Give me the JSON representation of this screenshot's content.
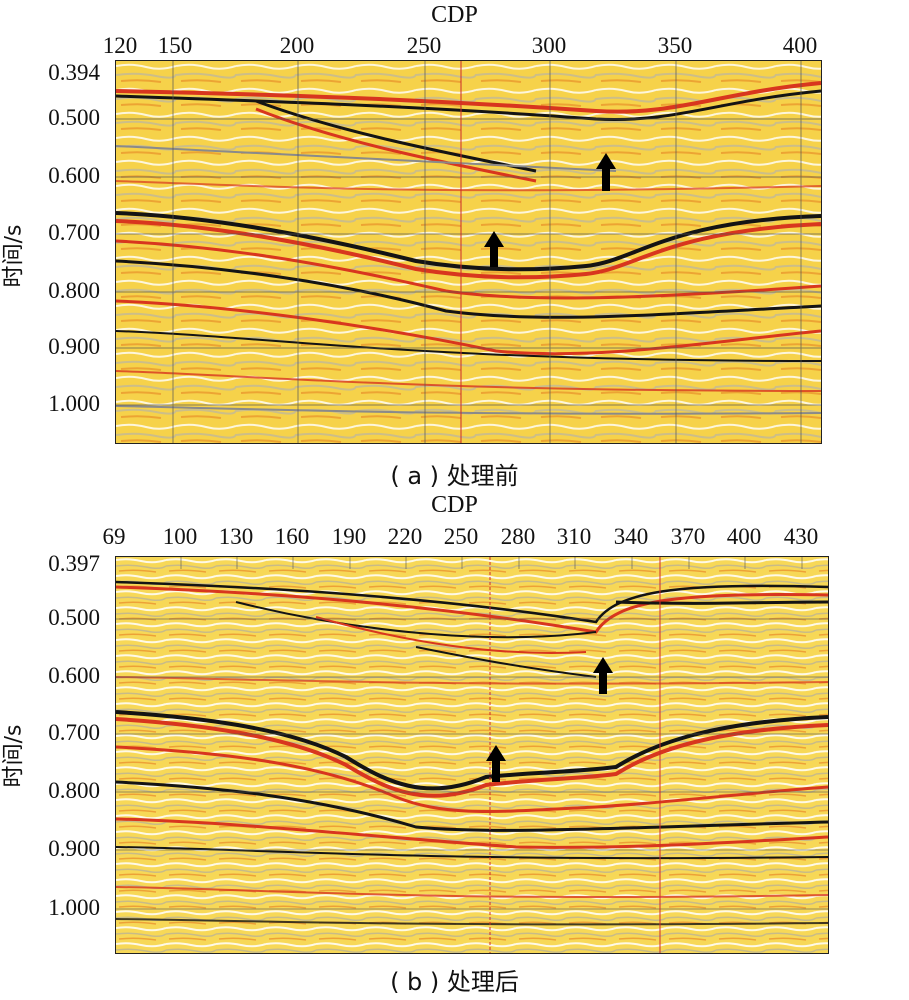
{
  "panels": [
    {
      "id": "a",
      "x_title": "CDP",
      "x_ticks": [
        "120",
        "150",
        "200",
        "250",
        "300",
        "350",
        "400"
      ],
      "y_title": "时间/s",
      "y_ticks": [
        "0.394",
        "0.500",
        "0.600",
        "0.700",
        "0.800",
        "0.900",
        "1.000"
      ],
      "caption": "( a ) 处理前"
    },
    {
      "id": "b",
      "x_title": "CDP",
      "x_ticks": [
        "69",
        "100",
        "130",
        "160",
        "190",
        "220",
        "250",
        "280",
        "310",
        "340",
        "370",
        "400",
        "430"
      ],
      "y_title": "时间/s",
      "y_ticks": [
        "0.397",
        "0.500",
        "0.600",
        "0.700",
        "0.800",
        "0.900",
        "1.000"
      ],
      "caption": "( b ) 处理后"
    }
  ],
  "colors": {
    "background_yellow": "#f6d24a",
    "reflector_red": "#d8361e",
    "reflector_black": "#141414",
    "trough_gray": "#9a9a9a",
    "marker_line_red": "#cc2a2a",
    "arrow": "#000000"
  }
}
